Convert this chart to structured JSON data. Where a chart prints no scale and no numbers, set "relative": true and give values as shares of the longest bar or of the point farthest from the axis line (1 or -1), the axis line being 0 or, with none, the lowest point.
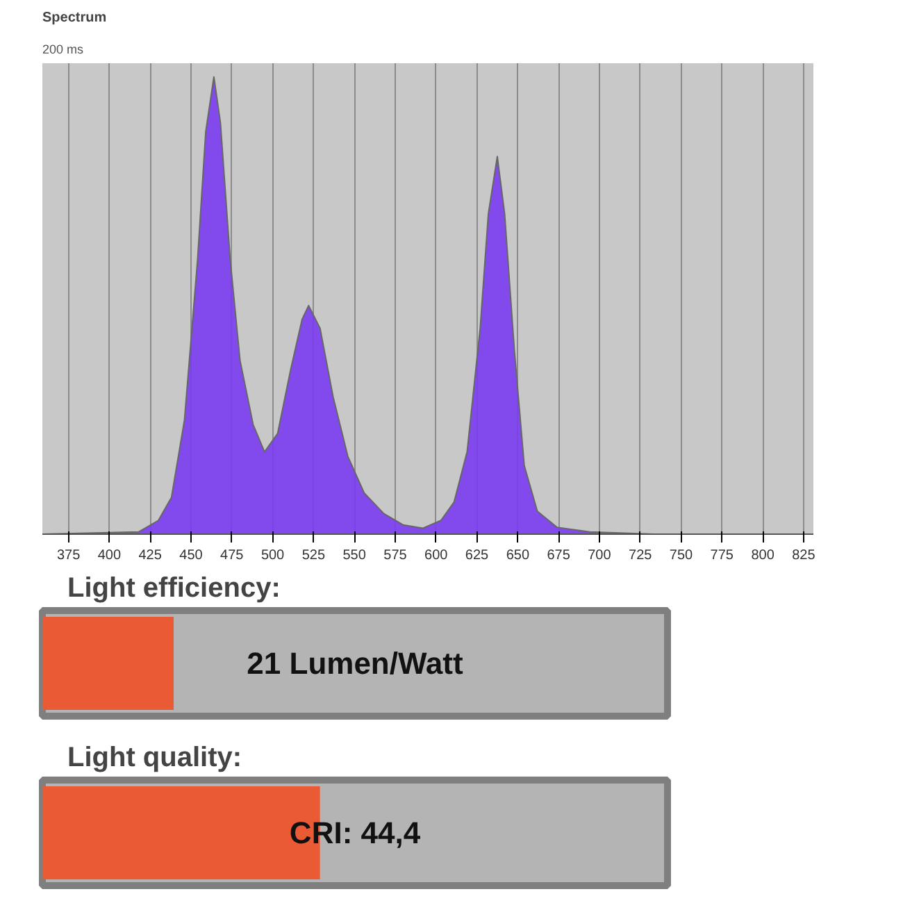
{
  "chart_data": [
    {
      "type": "area",
      "title": "Spectrum",
      "subtitle": "200 ms",
      "relative": true,
      "color": "#7a3cf0",
      "x": [
        359,
        418,
        430,
        438,
        446,
        454,
        459,
        464,
        468,
        474,
        480,
        488,
        495,
        503,
        511,
        518,
        522,
        529,
        537,
        546,
        556,
        568,
        580,
        592,
        603,
        611,
        619,
        627,
        632,
        637.5,
        642,
        648,
        654,
        662,
        674,
        694,
        733,
        831
      ],
      "values": [
        0,
        0.005,
        0.03,
        0.08,
        0.25,
        0.6,
        0.88,
        1.0,
        0.9,
        0.6,
        0.38,
        0.24,
        0.18,
        0.22,
        0.36,
        0.47,
        0.5,
        0.45,
        0.3,
        0.17,
        0.09,
        0.045,
        0.02,
        0.013,
        0.03,
        0.07,
        0.18,
        0.45,
        0.7,
        0.826,
        0.7,
        0.4,
        0.15,
        0.05,
        0.015,
        0.005,
        0,
        0
      ],
      "xlim": [
        359,
        831
      ],
      "xticks": [
        375,
        400,
        425,
        450,
        475,
        500,
        525,
        550,
        575,
        600,
        625,
        650,
        675,
        700,
        725,
        750,
        775,
        800,
        825
      ],
      "grid": "x"
    },
    {
      "type": "other",
      "title": "Light efficiency:",
      "values": [
        21
      ],
      "value_labels": [
        "21 Lumen/Watt"
      ]
    },
    {
      "type": "other",
      "title": "Light quality:",
      "values": [
        44.4
      ],
      "value_labels": [
        "CRI: 44,4"
      ]
    }
  ]
}
